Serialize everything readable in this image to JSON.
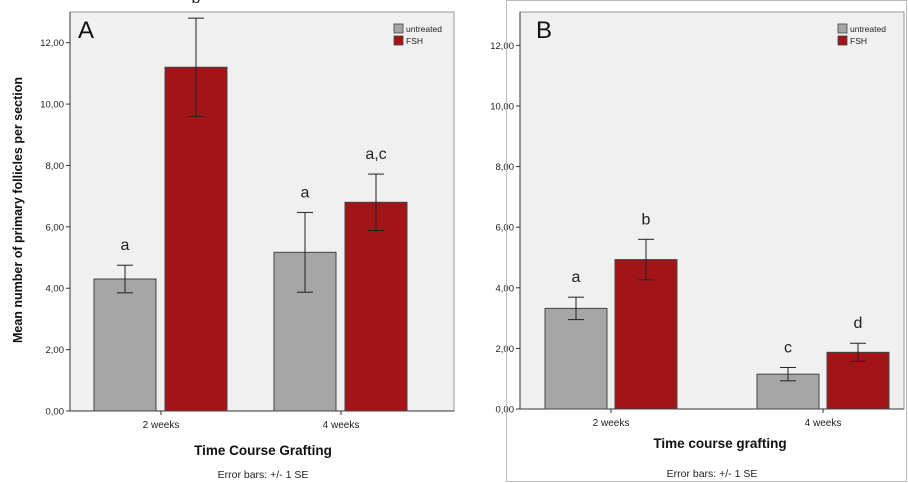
{
  "colors": {
    "untreated": "#a6a6a6",
    "fsh": "#a31419",
    "plot_bg": "#f0f0f0",
    "frame": "#999999",
    "axis": "#333333"
  },
  "error_note": "Error bars: +/- 1 SE",
  "chart_data": [
    {
      "type": "bar",
      "panel_label": "A",
      "title": "",
      "xlabel": "Time Course Grafting",
      "ylabel": "Mean number of primary follicles per section",
      "ylim": [
        0,
        13
      ],
      "yticks": [
        0,
        2,
        4,
        6,
        8,
        10,
        12
      ],
      "ytick_labels": [
        "0,00",
        "2,00",
        "4,00",
        "6,00",
        "8,00",
        "10,00",
        "12,00"
      ],
      "grid": false,
      "legend_position": "top-right",
      "categories": [
        "2 weeks",
        "4 weeks"
      ],
      "series": [
        {
          "name": "untreated",
          "values": [
            4.3,
            5.17
          ],
          "error": [
            0.45,
            1.3
          ],
          "labels": [
            "a",
            "a"
          ]
        },
        {
          "name": "FSH",
          "values": [
            11.2,
            6.8
          ],
          "error": [
            1.6,
            0.92
          ],
          "labels": [
            "b",
            "a,c"
          ]
        }
      ],
      "note": "Error bars: +/- 1 SE"
    },
    {
      "type": "bar",
      "panel_label": "B",
      "title": "",
      "xlabel": "Time course grafting",
      "ylabel": "",
      "ylim": [
        0,
        13
      ],
      "yticks": [
        0,
        2,
        4,
        6,
        8,
        10,
        12
      ],
      "ytick_labels": [
        "0,00",
        "2,00",
        "4,00",
        "6,00",
        "8,00",
        "10,00",
        "12,00"
      ],
      "grid": false,
      "legend_position": "top-right",
      "categories": [
        "2 weeks",
        "4 weeks"
      ],
      "series": [
        {
          "name": "untreated",
          "values": [
            3.32,
            1.15
          ],
          "error": [
            0.37,
            0.22
          ],
          "labels": [
            "a",
            "c"
          ]
        },
        {
          "name": "FSH",
          "values": [
            4.93,
            1.87
          ],
          "error": [
            0.67,
            0.3
          ],
          "labels": [
            "b",
            "d"
          ]
        }
      ],
      "note": "Error bars: +/- 1 SE"
    }
  ]
}
